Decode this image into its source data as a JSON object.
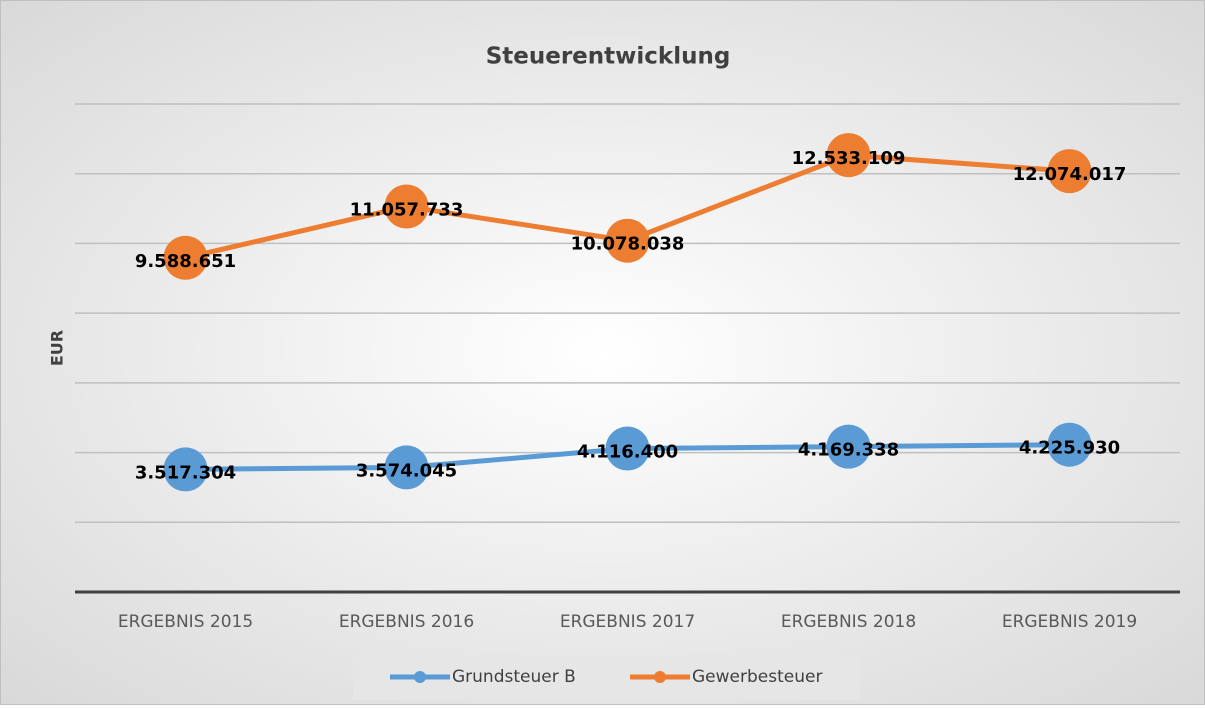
{
  "chart_data": {
    "type": "line",
    "title": "Steuerentwicklung",
    "y_label": "EUR",
    "categories": [
      "ERGEBNIS 2015",
      "ERGEBNIS 2016",
      "ERGEBNIS 2017",
      "ERGEBNIS 2018",
      "ERGEBNIS 2019"
    ],
    "series": [
      {
        "name": "Grundsteuer B",
        "color": "#5b9bd5",
        "values": [
          3517304,
          3574045,
          4116400,
          4169338,
          4225930
        ],
        "value_labels": [
          "3.517.304",
          "3.574.045",
          "4.116.400",
          "4.169.338",
          "4.225.930"
        ]
      },
      {
        "name": "Gewerbesteuer",
        "color": "#ed7d31",
        "values": [
          9588651,
          11057733,
          10078038,
          12533109,
          12074017
        ],
        "value_labels": [
          "9.588.651",
          "11.057.733",
          "10.078.038",
          "12.533.109",
          "12.074.017"
        ]
      }
    ],
    "ylim": [
      0,
      14000000
    ],
    "yticks": [
      0,
      2000000,
      4000000,
      6000000,
      8000000,
      10000000,
      12000000,
      14000000
    ],
    "grid": true,
    "legend": "bottom"
  }
}
